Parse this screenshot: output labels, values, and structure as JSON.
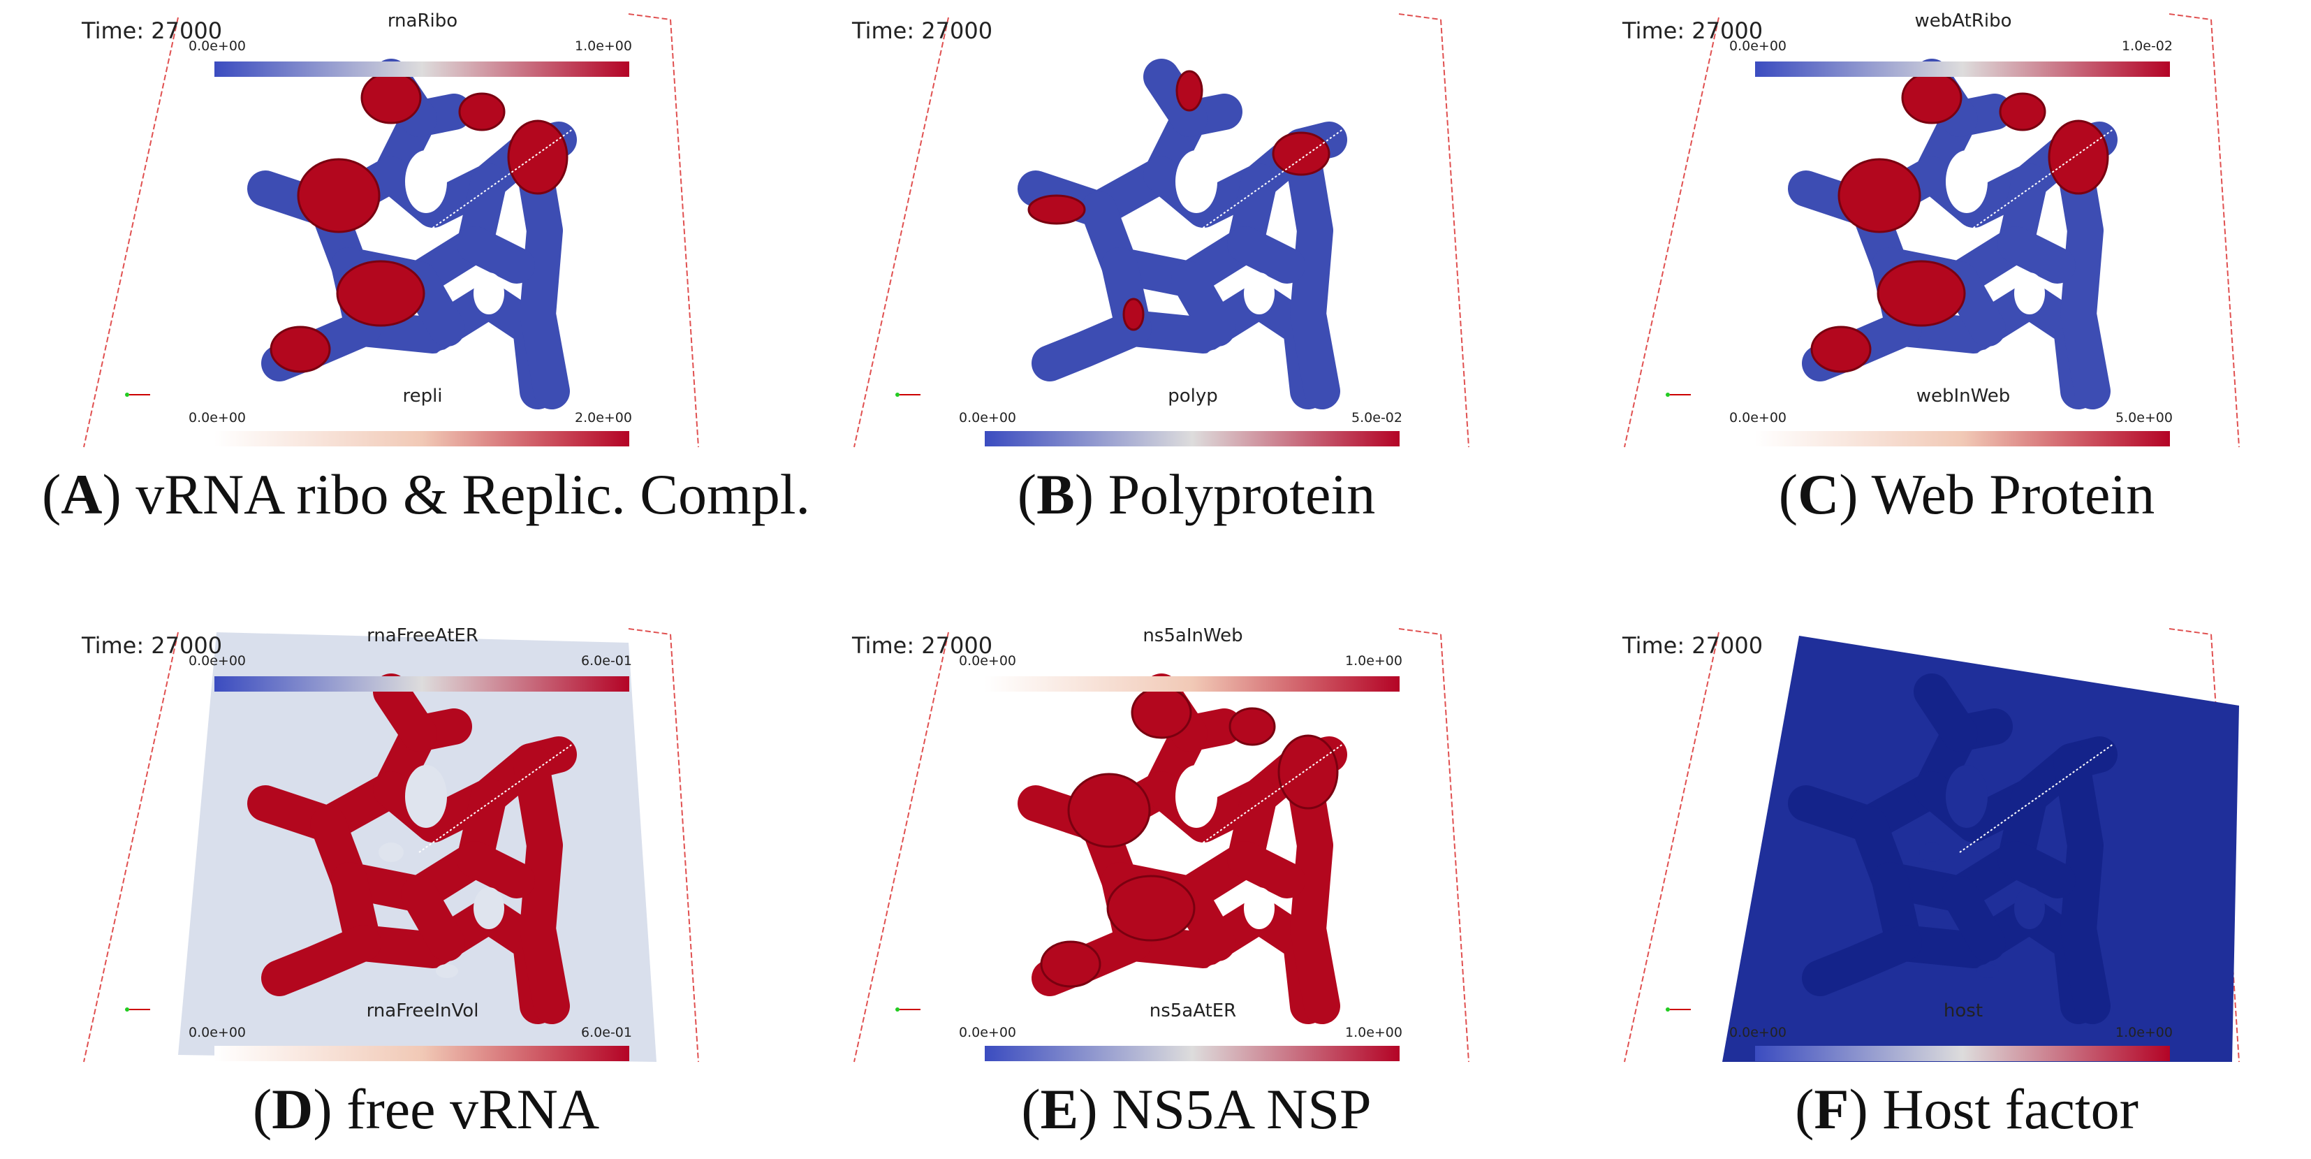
{
  "panels": [
    {
      "time": "Time: 27000",
      "top": {
        "title": "rnaRibo",
        "min": "0.0e+00",
        "max": "1.0e+00"
      },
      "bottom": {
        "title": "repli",
        "min": "0.0e+00",
        "max": "2.0e+00"
      },
      "caption": "(A) vRNA ribo & Replic. Compl."
    },
    {
      "time": "Time: 27000",
      "bottom": {
        "title": "polyp",
        "min": "0.0e+00",
        "max": "5.0e-02"
      },
      "caption": "(B) Polyprotein"
    },
    {
      "time": "Time: 27000",
      "top": {
        "title": "webAtRibo",
        "min": "0.0e+00",
        "max": "1.0e-02"
      },
      "bottom": {
        "title": "webInWeb",
        "min": "0.0e+00",
        "max": "5.0e+00"
      },
      "caption": "(C) Web Protein"
    },
    {
      "time": "Time: 27000",
      "top": {
        "title": "rnaFreeAtER",
        "min": "0.0e+00",
        "max": "6.0e-01"
      },
      "bottom": {
        "title": "rnaFreeInVol",
        "min": "0.0e+00",
        "max": "6.0e-01"
      },
      "caption": "(D) free vRNA"
    },
    {
      "time": "Time: 27000",
      "top": {
        "title": "ns5aInWeb",
        "min": "0.0e+00",
        "max": "1.0e+00"
      },
      "bottom": {
        "title": "ns5aAtER",
        "min": "0.0e+00",
        "max": "1.0e+00"
      },
      "caption": "(E) NS5A NSP"
    },
    {
      "time": "Time: 27000",
      "bottom": {
        "title": "host",
        "min": "0.0e+00",
        "max": "1.0e+00"
      },
      "caption": "(F) Host factor"
    }
  ]
}
